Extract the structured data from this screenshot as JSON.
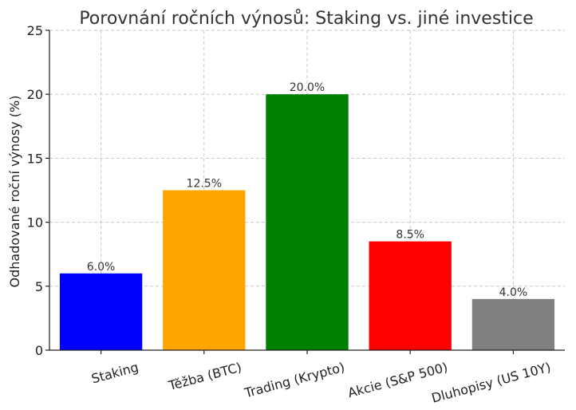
{
  "chart_data": {
    "type": "bar",
    "title": "Porovnání ročních výnosů: Staking vs. jiné investice",
    "xlabel": "",
    "ylabel": "Odhadované roční výnosy (%)",
    "categories": [
      "Staking",
      "Těžba (BTC)",
      "Trading (Krypto)",
      "Akcie (S&P 500)",
      "Dluhopisy (US 10Y)"
    ],
    "values": [
      6.0,
      12.5,
      20.0,
      8.5,
      4.0
    ],
    "data_labels": [
      "6.0%",
      "12.5%",
      "20.0%",
      "8.5%",
      "4.0%"
    ],
    "colors": [
      "#0000ff",
      "#ffa500",
      "#008000",
      "#ff0000",
      "#808080"
    ],
    "ylim": [
      0,
      25
    ],
    "yticks": [
      0,
      5,
      10,
      15,
      20,
      25
    ],
    "grid": true
  }
}
